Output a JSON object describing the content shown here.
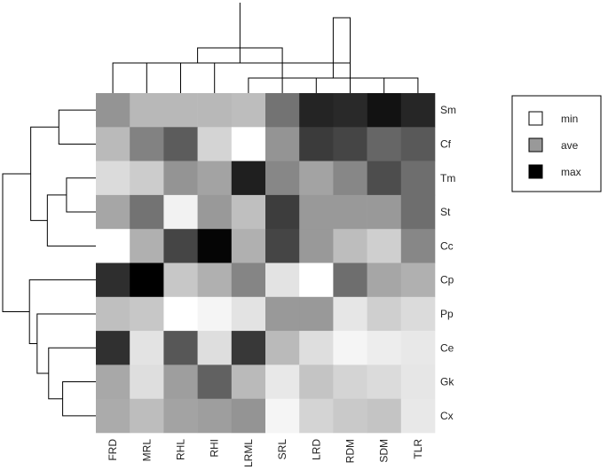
{
  "chart_data": {
    "type": "heatmap",
    "columns": [
      "FRD",
      "MRL",
      "RHL",
      "RHI",
      "LRML",
      "SRL",
      "LRD",
      "RDM",
      "SDM",
      "TLR"
    ],
    "rows": [
      "Sm",
      "Cf",
      "Tm",
      "St",
      "Cc",
      "Cp",
      "Pp",
      "Ce",
      "Gk",
      "Cx"
    ],
    "scale_note": "values are relative intensity: 0 = min (white), 0.5 = ave (grey), 1 = max (black)",
    "values": [
      [
        0.42,
        0.28,
        0.28,
        0.28,
        0.26,
        0.55,
        0.86,
        0.84,
        0.93,
        0.85
      ],
      [
        0.27,
        0.49,
        0.64,
        0.17,
        0.0,
        0.42,
        0.77,
        0.73,
        0.6,
        0.65
      ],
      [
        0.14,
        0.2,
        0.42,
        0.36,
        0.88,
        0.47,
        0.36,
        0.47,
        0.7,
        0.57
      ],
      [
        0.35,
        0.55,
        0.05,
        0.4,
        0.25,
        0.76,
        0.4,
        0.4,
        0.4,
        0.57
      ],
      [
        0.0,
        0.31,
        0.73,
        0.98,
        0.31,
        0.73,
        0.4,
        0.26,
        0.19,
        0.47
      ],
      [
        0.82,
        1.0,
        0.22,
        0.31,
        0.48,
        0.11,
        0.0,
        0.57,
        0.35,
        0.31
      ],
      [
        0.25,
        0.22,
        0.0,
        0.04,
        0.11,
        0.4,
        0.4,
        0.1,
        0.19,
        0.14
      ],
      [
        0.81,
        0.11,
        0.66,
        0.13,
        0.78,
        0.27,
        0.13,
        0.04,
        0.07,
        0.09
      ],
      [
        0.34,
        0.13,
        0.38,
        0.62,
        0.27,
        0.09,
        0.23,
        0.17,
        0.14,
        0.1
      ],
      [
        0.33,
        0.26,
        0.36,
        0.38,
        0.42,
        0.04,
        0.17,
        0.21,
        0.23,
        0.09
      ]
    ],
    "legend": [
      {
        "label": "min",
        "color": "#ffffff"
      },
      {
        "label": "ave",
        "color": "#999999"
      },
      {
        "label": "max",
        "color": "#000000"
      }
    ],
    "legend_position": "right",
    "col_dendrogram": [
      [
        1,
        2,
        2
      ],
      [
        3,
        4,
        2
      ],
      [
        5,
        10,
        1
      ],
      [
        7,
        9,
        1
      ],
      [
        8,
        11,
        2
      ],
      [
        6,
        12,
        3
      ],
      [
        13,
        14,
        5
      ],
      [
        15,
        16,
        6
      ]
    ],
    "row_dendrogram": [
      [
        1,
        2,
        1.45
      ],
      [
        3,
        4,
        1.15
      ],
      [
        5,
        12,
        1.9
      ],
      [
        11,
        13,
        2.55
      ],
      [
        9,
        10,
        1.3
      ],
      [
        8,
        15,
        1.85
      ],
      [
        7,
        16,
        2.3
      ],
      [
        6,
        17,
        2.6
      ],
      [
        14,
        18,
        3.65
      ]
    ]
  }
}
